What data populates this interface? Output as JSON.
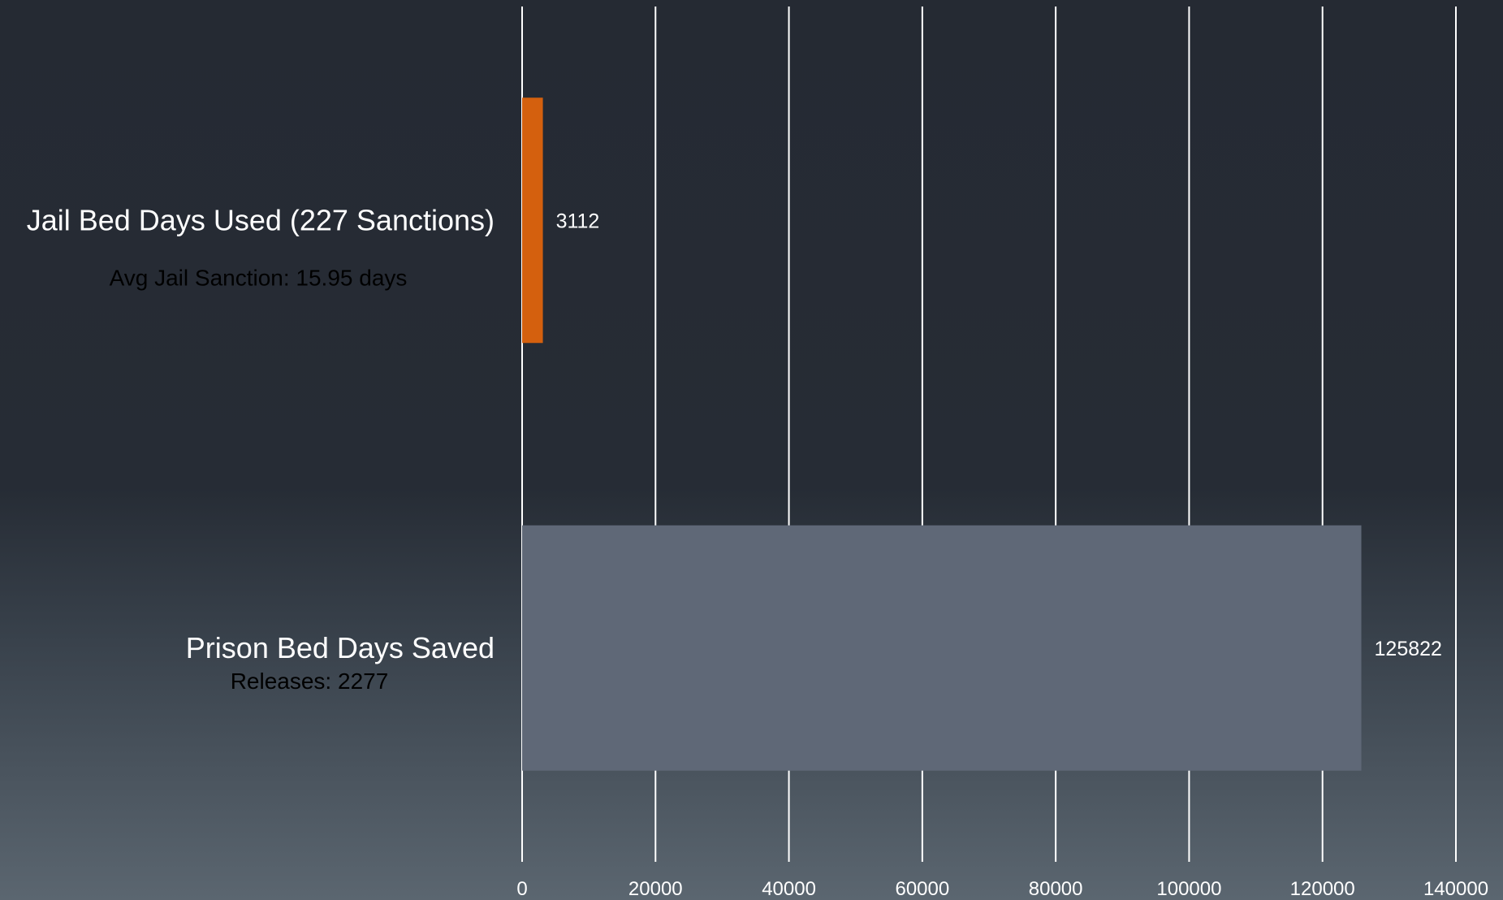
{
  "chart_data": {
    "type": "bar",
    "orientation": "horizontal",
    "categories": [
      "Jail Bed Days Used (227 Sanctions)",
      "Prison Bed Days Saved"
    ],
    "category_notes": [
      "Avg Jail Sanction: 15.95 days",
      "Releases: 2277"
    ],
    "values": [
      3112,
      125822
    ],
    "value_labels": [
      "3112",
      "125822"
    ],
    "bar_colors": [
      "#d4600e",
      "#5f6877"
    ],
    "xlim": [
      0,
      140000
    ],
    "x_ticks": [
      0,
      20000,
      40000,
      60000,
      80000,
      100000,
      120000,
      140000
    ],
    "x_tick_labels": [
      "0",
      "20000",
      "40000",
      "60000",
      "80000",
      "100000",
      "120000",
      "140000"
    ],
    "grid": true,
    "legend": false,
    "title": "",
    "xlabel": "",
    "ylabel": ""
  }
}
